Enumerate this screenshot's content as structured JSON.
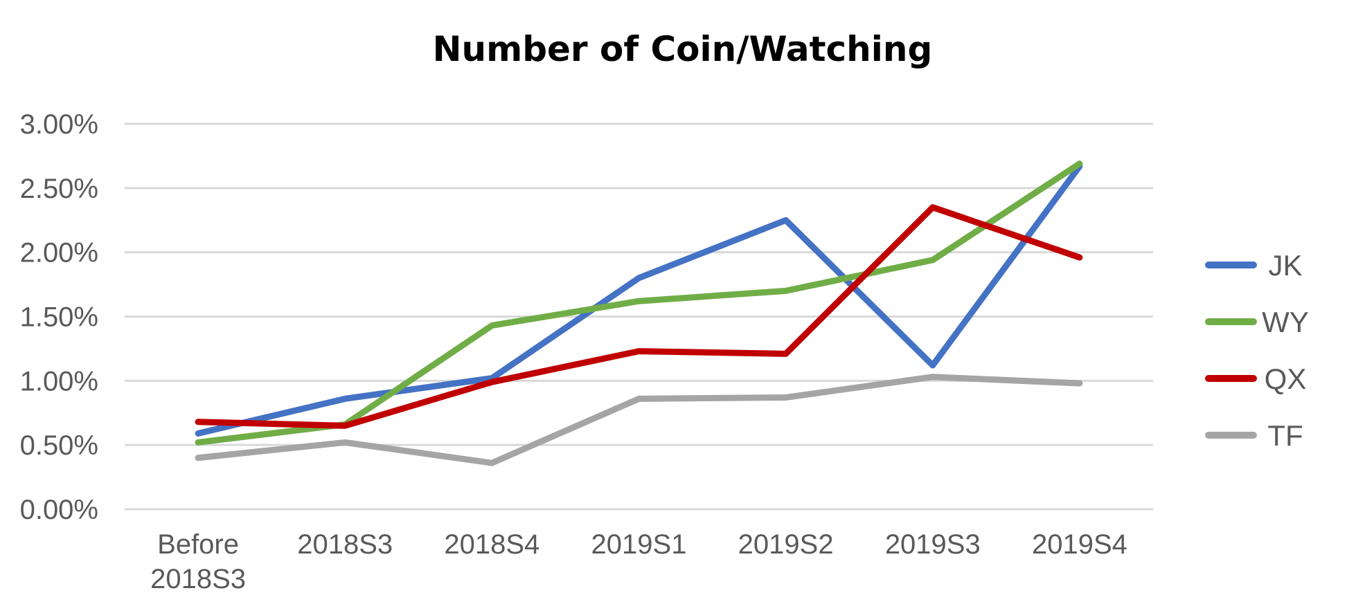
{
  "chart_data": {
    "type": "line",
    "title": "Number of Coin/Watching",
    "xlabel": "",
    "ylabel": "",
    "categories": [
      "Before 2018S3",
      "2018S3",
      "2018S4",
      "2019S1",
      "2019S2",
      "2019S3",
      "2019S4"
    ],
    "y_ticks": [
      "0.00%",
      "0.50%",
      "1.00%",
      "1.50%",
      "2.00%",
      "2.50%",
      "3.00%"
    ],
    "ylim": [
      0,
      3.0
    ],
    "grid": true,
    "legend_position": "right",
    "series": [
      {
        "name": "JK",
        "color": "#4472c4",
        "values": [
          0.59,
          0.86,
          1.02,
          1.8,
          2.25,
          1.12,
          2.67
        ]
      },
      {
        "name": "WY",
        "color": "#70ad47",
        "values": [
          0.52,
          0.66,
          1.43,
          1.62,
          1.7,
          1.94,
          2.69
        ]
      },
      {
        "name": "QX",
        "color": "#c00000",
        "values": [
          0.68,
          0.65,
          0.99,
          1.23,
          1.21,
          2.35,
          1.96
        ]
      },
      {
        "name": "TF",
        "color": "#a5a5a5",
        "values": [
          0.4,
          0.52,
          0.36,
          0.86,
          0.87,
          1.03,
          0.98
        ]
      }
    ]
  }
}
